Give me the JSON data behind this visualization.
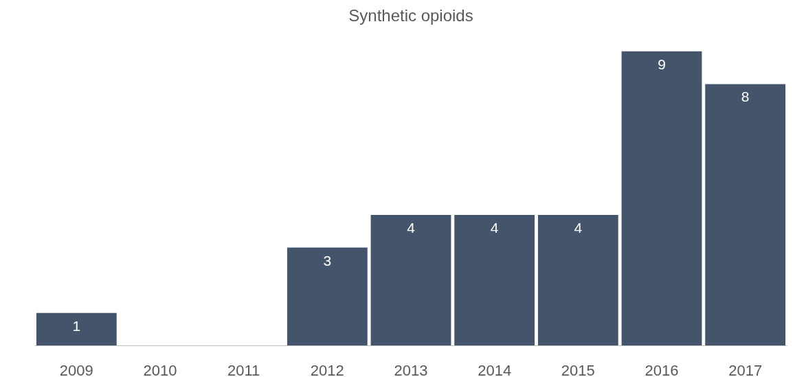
{
  "chart_data": {
    "type": "bar",
    "title": "Synthetic opioids",
    "categories": [
      "2009",
      "2010",
      "2011",
      "2012",
      "2013",
      "2014",
      "2015",
      "2016",
      "2017"
    ],
    "values": [
      1,
      null,
      null,
      3,
      4,
      4,
      4,
      9,
      8
    ],
    "color": "#44546a",
    "data_labels": true,
    "grid": false,
    "tick_labels": "x"
  }
}
